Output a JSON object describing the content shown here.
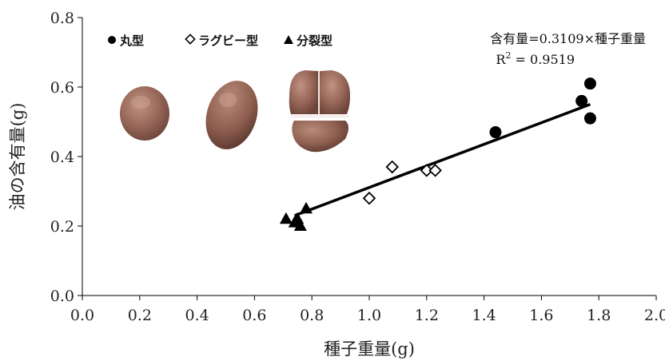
{
  "chart_data": {
    "type": "scatter",
    "title": "",
    "xlabel": "種子重量(g)",
    "ylabel": "油の含有量(g)",
    "xlim": [
      0.0,
      2.0
    ],
    "ylim": [
      0.0,
      0.8
    ],
    "xticks": [
      "0.0",
      "0.2",
      "0.4",
      "0.6",
      "0.8",
      "1.0",
      "1.2",
      "1.4",
      "1.6",
      "1.8",
      "2.0"
    ],
    "yticks": [
      "0.0",
      "0.2",
      "0.4",
      "0.6",
      "0.8"
    ],
    "grid": false,
    "legend_position": "top-left",
    "series": [
      {
        "name": "丸型",
        "marker": "circle-filled",
        "color": "#000000",
        "points": [
          [
            1.44,
            0.47
          ],
          [
            1.74,
            0.56
          ],
          [
            1.77,
            0.61
          ],
          [
            1.77,
            0.51
          ]
        ]
      },
      {
        "name": "ラグビー型",
        "marker": "diamond-open",
        "color": "#000000",
        "points": [
          [
            1.0,
            0.28
          ],
          [
            1.08,
            0.37
          ],
          [
            1.2,
            0.36
          ],
          [
            1.23,
            0.36
          ]
        ]
      },
      {
        "name": "分裂型",
        "marker": "triangle-filled",
        "color": "#000000",
        "points": [
          [
            0.71,
            0.22
          ],
          [
            0.74,
            0.21
          ],
          [
            0.75,
            0.22
          ],
          [
            0.76,
            0.2
          ],
          [
            0.78,
            0.25
          ]
        ]
      }
    ],
    "fit_line": {
      "slope": 0.3109,
      "x_range": [
        0.74,
        1.77
      ],
      "equation": "含有量=0.3109×種子重量",
      "r2_label": "R",
      "r2_sup": "2",
      "r2_value": " = 0.9519"
    }
  }
}
